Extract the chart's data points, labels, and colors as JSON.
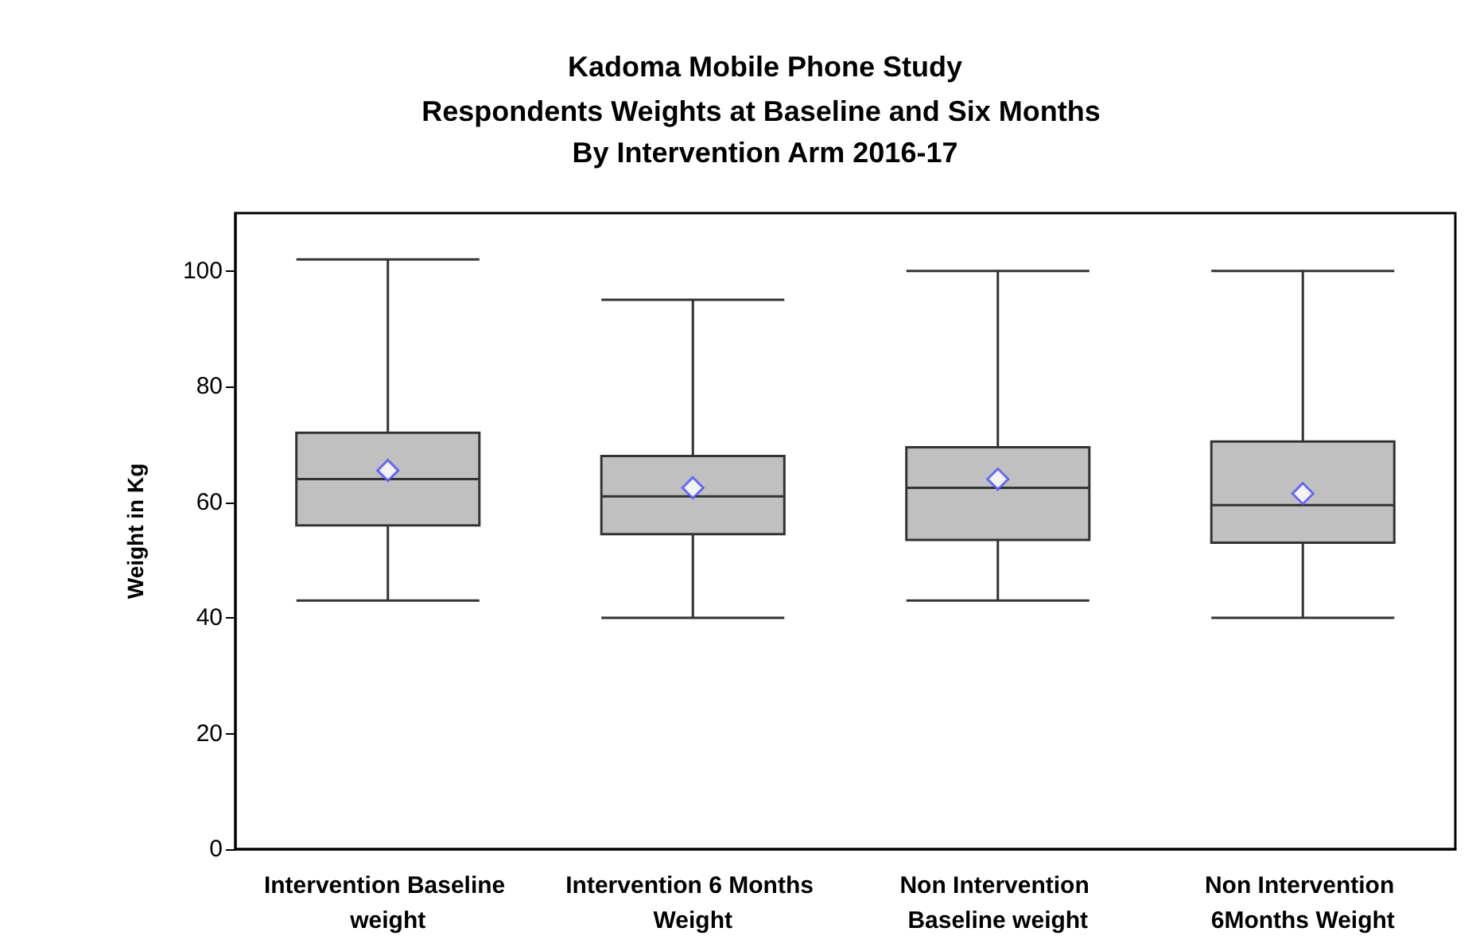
{
  "chart_data": {
    "type": "box",
    "title": "Kadoma Mobile Phone Study",
    "subtitle": "Respondents Weights at Baseline and Six Months By Intervention Arm 2016-17",
    "ylabel": "Weight in Kg",
    "categories": [
      "Intervention Baseline weight",
      "Intervention 6 Months Weight",
      "Non Intervention Baseline weight",
      "Non Intervention 6Months Weight"
    ],
    "series": [
      {
        "color": "#c0c0c0",
        "boxes": [
          {
            "low": 43,
            "q1": 56,
            "median": 64,
            "q3": 72,
            "high": 102,
            "mean": 65.5
          },
          {
            "low": 40,
            "q1": 54.5,
            "median": 61,
            "q3": 68,
            "high": 95,
            "mean": 62.5
          },
          {
            "low": 43,
            "q1": 53.5,
            "median": 62.5,
            "q3": 69.5,
            "high": 100,
            "mean": 64
          },
          {
            "low": 40,
            "q1": 53,
            "median": 59.5,
            "q3": 70.5,
            "high": 100,
            "mean": 61.5
          }
        ]
      }
    ],
    "ylim": [
      0,
      110
    ],
    "yticks": [
      0,
      20,
      40,
      60,
      80,
      100
    ]
  }
}
